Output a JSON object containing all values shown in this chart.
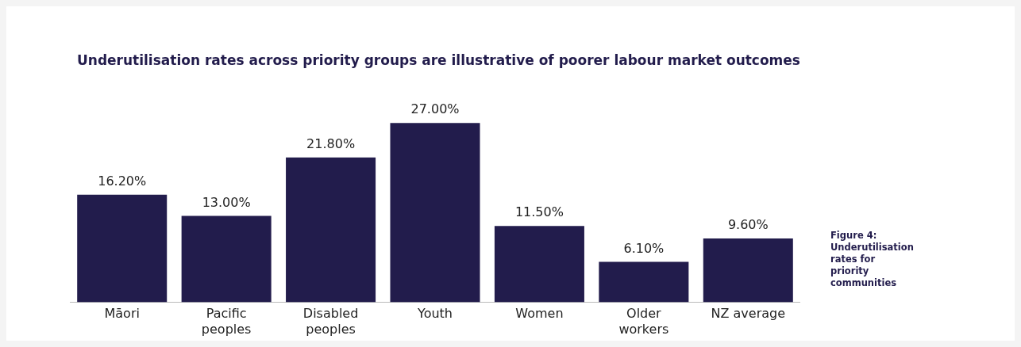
{
  "chart_data": {
    "type": "bar",
    "title": "Underutilisation rates across priority groups are illustrative of poorer labour market outcomes",
    "categories": [
      "Māori",
      "Pacific peoples",
      "Disabled peoples",
      "Youth",
      "Women",
      "Older workers",
      "NZ average"
    ],
    "values": [
      16.2,
      13.0,
      21.8,
      27.0,
      11.5,
      6.1,
      9.6
    ],
    "value_labels": [
      "16.20%",
      "13.00%",
      "21.80%",
      "27.00%",
      "11.50%",
      "6.10%",
      "9.60%"
    ],
    "color": "#221c4c",
    "tick_labels": "x",
    "annotations": [
      "Figure 4: Underutilisation rates for priority communities"
    ]
  }
}
